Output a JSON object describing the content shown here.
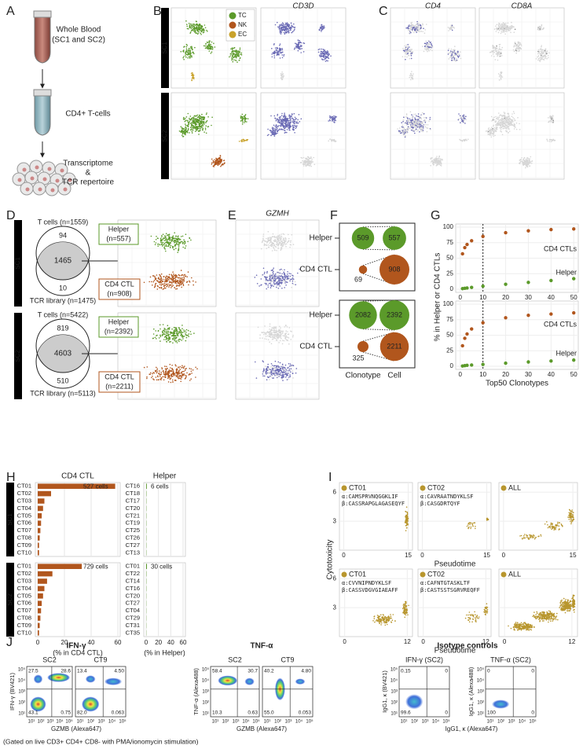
{
  "figure": {
    "panel_labels": [
      "A",
      "B",
      "C",
      "D",
      "E",
      "F",
      "G",
      "H",
      "I",
      "J"
    ],
    "samples": [
      "SC1",
      "SC2"
    ],
    "a": {
      "steps": [
        "Whole Blood",
        "(SC1 and SC2)",
        "CD4+ T-cells",
        "Transcriptome",
        "&",
        "TCR repertoire"
      ]
    },
    "b": {
      "legend": [
        {
          "name": "TC",
          "color": "#5b9a2a"
        },
        {
          "name": "NK",
          "color": "#b1561d"
        },
        {
          "name": "EC",
          "color": "#c9a22b"
        }
      ],
      "gene": "CD3D"
    },
    "c": {
      "genes": [
        "CD4",
        "CD8A"
      ]
    },
    "d": {
      "rows": [
        {
          "t_cells": "T cells (n=1559)",
          "t_only": "94",
          "both": "1465",
          "tcr_only": "10",
          "tcr_library": "TCR library (n=1475)",
          "helper": [
            "Helper",
            "(n=557)"
          ],
          "ctl": [
            "CD4 CTL",
            "(n=908)"
          ]
        },
        {
          "t_cells": "T cells (n=5422)",
          "t_only": "819",
          "both": "4603",
          "tcr_only": "510",
          "tcr_library": "TCR library (n=5113)",
          "helper": [
            "Helper",
            "(n=2392)"
          ],
          "ctl": [
            "CD4 CTL",
            "(n=2211)"
          ]
        }
      ]
    },
    "e": {
      "gene": "GZMH"
    },
    "f": {
      "rows": [
        "Helper",
        "CD4 CTL"
      ],
      "columns": [
        "Clonotype",
        "Cell"
      ],
      "panels": [
        {
          "helper": [
            509,
            557
          ],
          "ctl": [
            69,
            908
          ]
        },
        {
          "helper": [
            2082,
            2392
          ],
          "ctl": [
            325,
            2211
          ]
        }
      ]
    },
    "g": {
      "type": "scatter",
      "ylabel": "% in Helper or CD4 CTLs",
      "xlabel": "Top50 Clonotypes",
      "xlim": [
        -2,
        52
      ],
      "xticks": [
        0,
        10,
        20,
        30,
        40,
        50
      ],
      "ylim": [
        -5,
        105
      ],
      "yticks": [
        0,
        25,
        50,
        75,
        100
      ],
      "cutoff_x": 10,
      "annotations": [
        "CD4 CTLs",
        "Helper"
      ],
      "panels": [
        {
          "x": [
            1,
            2,
            3,
            5,
            10,
            20,
            30,
            40,
            50
          ],
          "series": [
            {
              "name": "CD4 CTLs",
              "color": "#b1561d",
              "values": [
                57,
                67,
                72,
                78,
                85,
                91,
                94,
                96,
                97
              ]
            },
            {
              "name": "Helper",
              "color": "#5b9a2a",
              "values": [
                1,
                1.5,
                2,
                3,
                5,
                8,
                11,
                14,
                17
              ]
            }
          ]
        },
        {
          "x": [
            1,
            2,
            3,
            5,
            10,
            20,
            30,
            40,
            50
          ],
          "series": [
            {
              "name": "CD4 CTLs",
              "color": "#b1561d",
              "values": [
                33,
                45,
                52,
                60,
                70,
                78,
                82,
                84,
                86
              ]
            },
            {
              "name": "Helper",
              "color": "#5b9a2a",
              "values": [
                0.5,
                1,
                1.5,
                2,
                3,
                5,
                7,
                8.5,
                10
              ]
            }
          ]
        }
      ]
    },
    "h": {
      "type": "bar",
      "titles": [
        "CD4 CTL",
        "Helper"
      ],
      "xlabels": [
        "(% in CD4 CTL)",
        "(% in Helper)"
      ],
      "xlim": [
        0,
        60
      ],
      "xticks": [
        0,
        20,
        40,
        60
      ],
      "colors": [
        "#b1561d",
        "#5b9a2a"
      ],
      "panels": [
        {
          "ctl": {
            "categories": [
              "CT01",
              "CT02",
              "CT03",
              "CT04",
              "CT05",
              "CT06",
              "CT07",
              "CT08",
              "CT09",
              "CT10"
            ],
            "values": [
              58,
              10,
              5,
              4,
              3,
              2.5,
              2,
              1.5,
              1,
              1
            ],
            "note": "527 cells"
          },
          "helper": {
            "categories": [
              "CT16",
              "CT18",
              "CT17",
              "CT20",
              "CT21",
              "CT19",
              "CT25",
              "CT26",
              "CT27",
              "CT13"
            ],
            "values": [
              1.1,
              0.5,
              0.4,
              0.4,
              0.4,
              0.4,
              0.4,
              0.4,
              0.4,
              0.4
            ],
            "note": "6 cells"
          }
        },
        {
          "ctl": {
            "categories": [
              "CT01",
              "CT02",
              "CT03",
              "CT04",
              "CT05",
              "CT06",
              "CT07",
              "CT08",
              "CT09",
              "CT10"
            ],
            "values": [
              33,
              11,
              7,
              5,
              4,
              3,
              2.5,
              2,
              1.5,
              1
            ],
            "note": "729 cells"
          },
          "helper": {
            "categories": [
              "CT01",
              "CT22",
              "CT14",
              "CT16",
              "CT20",
              "CT27",
              "CT04",
              "CT29",
              "CT31",
              "CT35"
            ],
            "values": [
              1.3,
              0.5,
              0.4,
              0.4,
              0.3,
              0.3,
              0.3,
              0.3,
              0.3,
              0.3
            ],
            "note": "30 cells"
          }
        }
      ]
    },
    "i": {
      "ylabel": "Cytotoxicity",
      "xlabel": "Pseudotime",
      "ylim": [
        0,
        7
      ],
      "yticks": [
        3,
        6
      ],
      "rows": [
        {
          "xlim": [
            -1,
            16
          ],
          "xticks": [
            0,
            15
          ],
          "panels": [
            {
              "clone": "CT01",
              "alpha": "α:CAMSPRVNQGGKLIF",
              "beta": "β:CASSRAPGLAGASEQYF"
            },
            {
              "clone": "CT02",
              "alpha": "α:CAVRAATNDYKLSF",
              "beta": "β:CASGDRTQYF"
            },
            {
              "clone": "ALL"
            }
          ]
        },
        {
          "xlim": [
            -1,
            13
          ],
          "xticks": [
            0,
            12
          ],
          "panels": [
            {
              "clone": "CT01",
              "alpha": "α:CVVNIPNDYKLSF",
              "beta": "β:CASSVDGVGIAEAFF"
            },
            {
              "clone": "CT02",
              "alpha": "α:CAFNTGTASKLTF",
              "beta": "β:CASTSSTSGRVREQFF"
            },
            {
              "clone": "ALL"
            }
          ]
        }
      ]
    },
    "j": {
      "axis_ticks": [
        "10¹",
        "10²",
        "10³",
        "10⁴",
        "10⁵"
      ],
      "groups": [
        {
          "title": "IFN-γ",
          "xlabel": "GZMB (Alexa647)",
          "plots": [
            {
              "name": "SC2",
              "ylabel": "IFN-γ (BV421)",
              "quadrants": [
                "27.5",
                "28.6",
                "43.1",
                "0.75"
              ]
            },
            {
              "name": "CT9",
              "quadrants": [
                "13.4",
                "4.50",
                "82.0",
                "0.063"
              ]
            }
          ]
        },
        {
          "title": "TNF-α",
          "xlabel": "GZMB (Alexa647)",
          "plots": [
            {
              "name": "SC2",
              "ylabel": "TNF-α (Alexa488)",
              "quadrants": [
                "58.4",
                "30.7",
                "10.3",
                "0.63"
              ]
            },
            {
              "name": "CT9",
              "quadrants": [
                "40.2",
                "4.80",
                "55.0",
                "0.053"
              ]
            }
          ]
        },
        {
          "title": "Isotype controls",
          "xlabel": "IgG1, κ (Alexa647)",
          "plots": [
            {
              "name": "IFN-γ (SC2)",
              "ylabel": "IgG1, κ (BV421)",
              "quadrants": [
                "0.15",
                "0",
                "99.6",
                "0"
              ]
            },
            {
              "name": "TNF-α (SC2)",
              "ylabel": "IgG1, κ (Alexa488)",
              "quadrants": [
                "0",
                "0",
                "100",
                "0"
              ]
            }
          ]
        }
      ],
      "footnote": "(Gated on live CD3+ CD4+ CD8- with PMA/ionomycin stimulation)"
    }
  }
}
